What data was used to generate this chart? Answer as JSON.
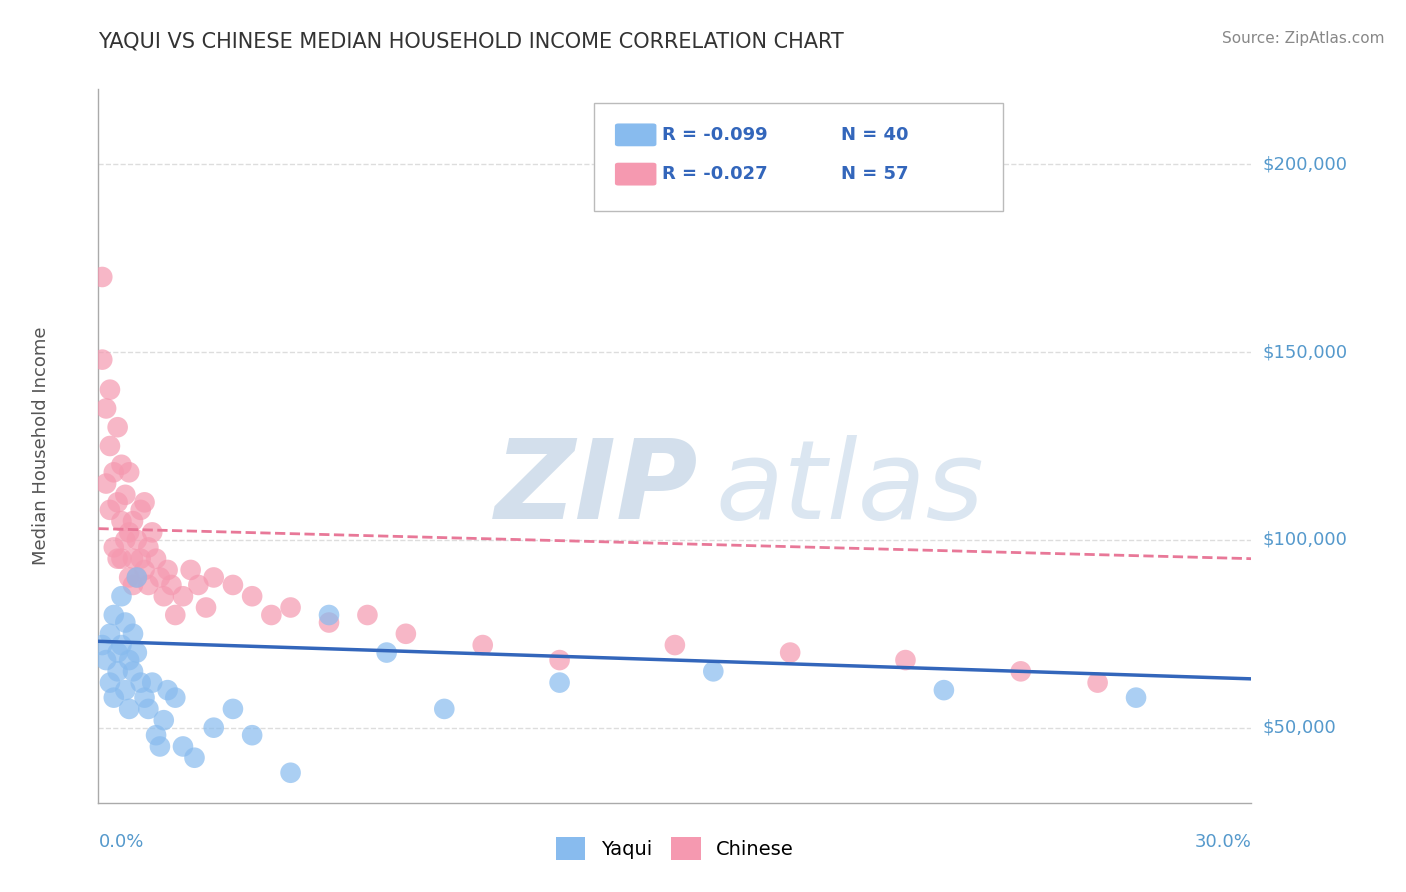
{
  "title": "YAQUI VS CHINESE MEDIAN HOUSEHOLD INCOME CORRELATION CHART",
  "source": "Source: ZipAtlas.com",
  "ylabel": "Median Household Income",
  "xlim": [
    0.0,
    0.3
  ],
  "ylim": [
    30000,
    220000
  ],
  "yticks": [
    50000,
    100000,
    150000,
    200000
  ],
  "ytick_labels": [
    "$50,000",
    "$100,000",
    "$150,000",
    "$200,000"
  ],
  "yaqui_color": "#88bbee",
  "chinese_color": "#f599b0",
  "yaqui_line_color": "#3366bb",
  "chinese_line_color": "#e87898",
  "axis_label_color": "#5599cc",
  "title_color": "#333333",
  "source_color": "#888888",
  "grid_color": "#dddddd",
  "legend_r_color": "#3366bb",
  "yaqui_x": [
    0.001,
    0.002,
    0.003,
    0.003,
    0.004,
    0.004,
    0.005,
    0.005,
    0.006,
    0.006,
    0.007,
    0.007,
    0.008,
    0.008,
    0.009,
    0.009,
    0.01,
    0.01,
    0.011,
    0.012,
    0.013,
    0.014,
    0.015,
    0.016,
    0.017,
    0.018,
    0.02,
    0.022,
    0.025,
    0.03,
    0.035,
    0.04,
    0.05,
    0.06,
    0.075,
    0.09,
    0.12,
    0.16,
    0.22,
    0.27
  ],
  "yaqui_y": [
    72000,
    68000,
    75000,
    62000,
    80000,
    58000,
    70000,
    65000,
    85000,
    72000,
    78000,
    60000,
    55000,
    68000,
    65000,
    75000,
    90000,
    70000,
    62000,
    58000,
    55000,
    62000,
    48000,
    45000,
    52000,
    60000,
    58000,
    45000,
    42000,
    50000,
    55000,
    48000,
    38000,
    80000,
    70000,
    55000,
    62000,
    65000,
    60000,
    58000
  ],
  "chinese_x": [
    0.001,
    0.001,
    0.002,
    0.002,
    0.003,
    0.003,
    0.003,
    0.004,
    0.004,
    0.005,
    0.005,
    0.005,
    0.006,
    0.006,
    0.006,
    0.007,
    0.007,
    0.008,
    0.008,
    0.008,
    0.009,
    0.009,
    0.009,
    0.01,
    0.01,
    0.011,
    0.011,
    0.012,
    0.012,
    0.013,
    0.013,
    0.014,
    0.015,
    0.016,
    0.017,
    0.018,
    0.019,
    0.02,
    0.022,
    0.024,
    0.026,
    0.028,
    0.03,
    0.035,
    0.04,
    0.045,
    0.05,
    0.06,
    0.07,
    0.08,
    0.1,
    0.12,
    0.15,
    0.18,
    0.21,
    0.24,
    0.26
  ],
  "chinese_y": [
    170000,
    148000,
    135000,
    115000,
    140000,
    125000,
    108000,
    118000,
    98000,
    130000,
    110000,
    95000,
    120000,
    105000,
    95000,
    112000,
    100000,
    118000,
    102000,
    90000,
    105000,
    95000,
    88000,
    100000,
    90000,
    108000,
    95000,
    92000,
    110000,
    98000,
    88000,
    102000,
    95000,
    90000,
    85000,
    92000,
    88000,
    80000,
    85000,
    92000,
    88000,
    82000,
    90000,
    88000,
    85000,
    80000,
    82000,
    78000,
    80000,
    75000,
    72000,
    68000,
    72000,
    70000,
    68000,
    65000,
    62000
  ],
  "yaqui_trend_x": [
    0.0,
    0.3
  ],
  "yaqui_trend_y": [
    73000,
    63000
  ],
  "chinese_trend_x": [
    0.0,
    0.3
  ],
  "chinese_trend_y": [
    103000,
    95000
  ]
}
